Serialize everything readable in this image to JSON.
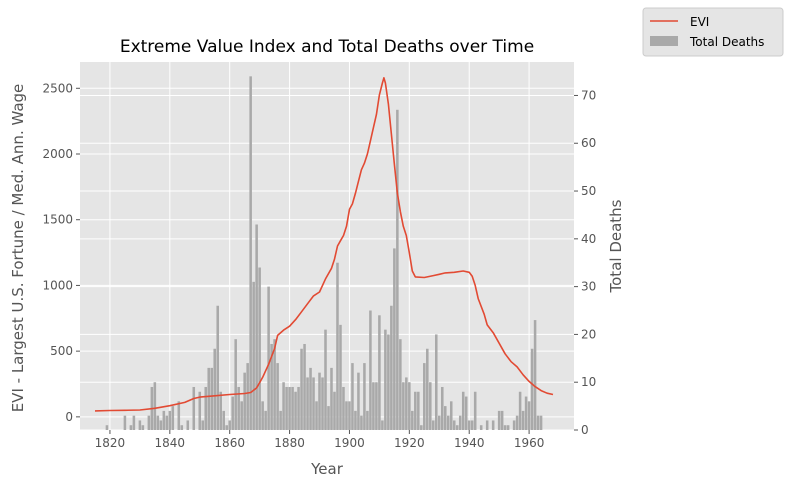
{
  "chart_data": {
    "type": "line+bar",
    "title": "Extreme Value Index and Total Deaths over Time",
    "xlabel": "Year",
    "ylabel_left": "EVI - Largest U.S. Fortune / Med. Ann. Wage",
    "ylabel_right": "Total Deaths",
    "xlim": [
      1810,
      1975
    ],
    "ylim_left": [
      -100,
      2700
    ],
    "ylim_right": [
      0,
      77
    ],
    "x_ticks": [
      1820,
      1840,
      1860,
      1880,
      1900,
      1920,
      1940,
      1960
    ],
    "y_left_ticks": [
      0,
      500,
      1000,
      1500,
      2000,
      2500
    ],
    "y_right_ticks": [
      0,
      10,
      20,
      30,
      40,
      50,
      60,
      70
    ],
    "grid": true,
    "legend": {
      "placement": "top-right outside",
      "entries": [
        {
          "label": "EVI",
          "kind": "line"
        },
        {
          "label": "Total Deaths",
          "kind": "bar"
        }
      ]
    },
    "colors": {
      "evi": "#E24A33",
      "deaths": "#A9A9A9",
      "plot_bg": "#E5E5E5",
      "grid": "#FFFFFF"
    },
    "series": [
      {
        "name": "EVI",
        "kind": "line",
        "axis": "left",
        "points": [
          [
            1815,
            45
          ],
          [
            1820,
            48
          ],
          [
            1825,
            50
          ],
          [
            1830,
            52
          ],
          [
            1835,
            65
          ],
          [
            1840,
            85
          ],
          [
            1845,
            110
          ],
          [
            1848,
            140
          ],
          [
            1850,
            150
          ],
          [
            1855,
            160
          ],
          [
            1860,
            170
          ],
          [
            1865,
            178
          ],
          [
            1867,
            185
          ],
          [
            1869,
            220
          ],
          [
            1871,
            300
          ],
          [
            1873,
            400
          ],
          [
            1875,
            520
          ],
          [
            1876,
            620
          ],
          [
            1878,
            660
          ],
          [
            1880,
            690
          ],
          [
            1882,
            740
          ],
          [
            1884,
            800
          ],
          [
            1886,
            860
          ],
          [
            1888,
            920
          ],
          [
            1890,
            950
          ],
          [
            1892,
            1050
          ],
          [
            1894,
            1130
          ],
          [
            1895,
            1200
          ],
          [
            1896,
            1300
          ],
          [
            1897,
            1340
          ],
          [
            1898,
            1380
          ],
          [
            1899,
            1450
          ],
          [
            1900,
            1580
          ],
          [
            1901,
            1620
          ],
          [
            1902,
            1700
          ],
          [
            1903,
            1790
          ],
          [
            1904,
            1880
          ],
          [
            1905,
            1930
          ],
          [
            1906,
            2000
          ],
          [
            1907,
            2100
          ],
          [
            1908,
            2200
          ],
          [
            1909,
            2300
          ],
          [
            1910,
            2450
          ],
          [
            1911,
            2540
          ],
          [
            1911.5,
            2580
          ],
          [
            1912,
            2540
          ],
          [
            1913,
            2380
          ],
          [
            1914,
            2150
          ],
          [
            1915,
            1920
          ],
          [
            1916,
            1700
          ],
          [
            1917,
            1560
          ],
          [
            1918,
            1450
          ],
          [
            1919,
            1380
          ],
          [
            1920,
            1250
          ],
          [
            1921,
            1110
          ],
          [
            1922,
            1065
          ],
          [
            1925,
            1060
          ],
          [
            1928,
            1075
          ],
          [
            1930,
            1085
          ],
          [
            1932,
            1095
          ],
          [
            1935,
            1100
          ],
          [
            1938,
            1110
          ],
          [
            1940,
            1100
          ],
          [
            1941,
            1070
          ],
          [
            1942,
            1000
          ],
          [
            1943,
            900
          ],
          [
            1945,
            780
          ],
          [
            1946,
            700
          ],
          [
            1948,
            640
          ],
          [
            1950,
            560
          ],
          [
            1952,
            480
          ],
          [
            1954,
            420
          ],
          [
            1956,
            380
          ],
          [
            1958,
            320
          ],
          [
            1960,
            270
          ],
          [
            1962,
            230
          ],
          [
            1964,
            200
          ],
          [
            1966,
            180
          ],
          [
            1968,
            170
          ]
        ]
      },
      {
        "name": "Total Deaths",
        "kind": "bar",
        "axis": "right",
        "points": [
          [
            1819,
            1
          ],
          [
            1825,
            3
          ],
          [
            1827,
            1
          ],
          [
            1828,
            3
          ],
          [
            1830,
            2
          ],
          [
            1831,
            1
          ],
          [
            1833,
            3
          ],
          [
            1834,
            9
          ],
          [
            1835,
            10
          ],
          [
            1836,
            3
          ],
          [
            1837,
            2
          ],
          [
            1838,
            4
          ],
          [
            1839,
            3
          ],
          [
            1840,
            4
          ],
          [
            1841,
            5
          ],
          [
            1843,
            6
          ],
          [
            1844,
            1
          ],
          [
            1846,
            2
          ],
          [
            1848,
            9
          ],
          [
            1850,
            8
          ],
          [
            1851,
            2
          ],
          [
            1852,
            9
          ],
          [
            1853,
            13
          ],
          [
            1854,
            13
          ],
          [
            1855,
            17
          ],
          [
            1856,
            26
          ],
          [
            1857,
            8
          ],
          [
            1858,
            4
          ],
          [
            1859,
            1
          ],
          [
            1860,
            2
          ],
          [
            1861,
            7
          ],
          [
            1862,
            19
          ],
          [
            1863,
            9
          ],
          [
            1864,
            6
          ],
          [
            1865,
            12
          ],
          [
            1866,
            14
          ],
          [
            1867,
            74
          ],
          [
            1868,
            31
          ],
          [
            1869,
            43
          ],
          [
            1870,
            34
          ],
          [
            1871,
            6
          ],
          [
            1872,
            4
          ],
          [
            1873,
            30
          ],
          [
            1874,
            18
          ],
          [
            1875,
            19
          ],
          [
            1876,
            14
          ],
          [
            1877,
            4
          ],
          [
            1878,
            10
          ],
          [
            1879,
            9
          ],
          [
            1880,
            9
          ],
          [
            1881,
            9
          ],
          [
            1882,
            8
          ],
          [
            1883,
            9
          ],
          [
            1884,
            17
          ],
          [
            1885,
            18
          ],
          [
            1886,
            11
          ],
          [
            1887,
            13
          ],
          [
            1888,
            11
          ],
          [
            1889,
            6
          ],
          [
            1890,
            12
          ],
          [
            1891,
            11
          ],
          [
            1892,
            21
          ],
          [
            1893,
            5
          ],
          [
            1894,
            13
          ],
          [
            1895,
            8
          ],
          [
            1896,
            35
          ],
          [
            1897,
            22
          ],
          [
            1898,
            9
          ],
          [
            1899,
            6
          ],
          [
            1900,
            6
          ],
          [
            1901,
            14
          ],
          [
            1902,
            4
          ],
          [
            1903,
            12
          ],
          [
            1904,
            3
          ],
          [
            1905,
            14
          ],
          [
            1906,
            4
          ],
          [
            1907,
            25
          ],
          [
            1908,
            10
          ],
          [
            1909,
            10
          ],
          [
            1910,
            24
          ],
          [
            1911,
            2
          ],
          [
            1912,
            21
          ],
          [
            1913,
            20
          ],
          [
            1914,
            26
          ],
          [
            1915,
            38
          ],
          [
            1916,
            67
          ],
          [
            1917,
            19
          ],
          [
            1918,
            10
          ],
          [
            1919,
            11
          ],
          [
            1920,
            10
          ],
          [
            1921,
            4
          ],
          [
            1922,
            8
          ],
          [
            1923,
            8
          ],
          [
            1924,
            1
          ],
          [
            1925,
            14
          ],
          [
            1926,
            17
          ],
          [
            1927,
            10
          ],
          [
            1928,
            2
          ],
          [
            1929,
            20
          ],
          [
            1930,
            3
          ],
          [
            1931,
            9
          ],
          [
            1932,
            5
          ],
          [
            1933,
            3
          ],
          [
            1934,
            6
          ],
          [
            1935,
            2
          ],
          [
            1936,
            1
          ],
          [
            1937,
            3
          ],
          [
            1938,
            8
          ],
          [
            1939,
            7
          ],
          [
            1940,
            2
          ],
          [
            1941,
            2
          ],
          [
            1942,
            8
          ],
          [
            1944,
            1
          ],
          [
            1946,
            2
          ],
          [
            1948,
            2
          ],
          [
            1950,
            4
          ],
          [
            1951,
            4
          ],
          [
            1952,
            1
          ],
          [
            1953,
            1
          ],
          [
            1955,
            2
          ],
          [
            1956,
            3
          ],
          [
            1957,
            8
          ],
          [
            1958,
            4
          ],
          [
            1959,
            7
          ],
          [
            1960,
            6
          ],
          [
            1961,
            17
          ],
          [
            1962,
            23
          ],
          [
            1963,
            3
          ],
          [
            1964,
            3
          ]
        ]
      }
    ]
  }
}
